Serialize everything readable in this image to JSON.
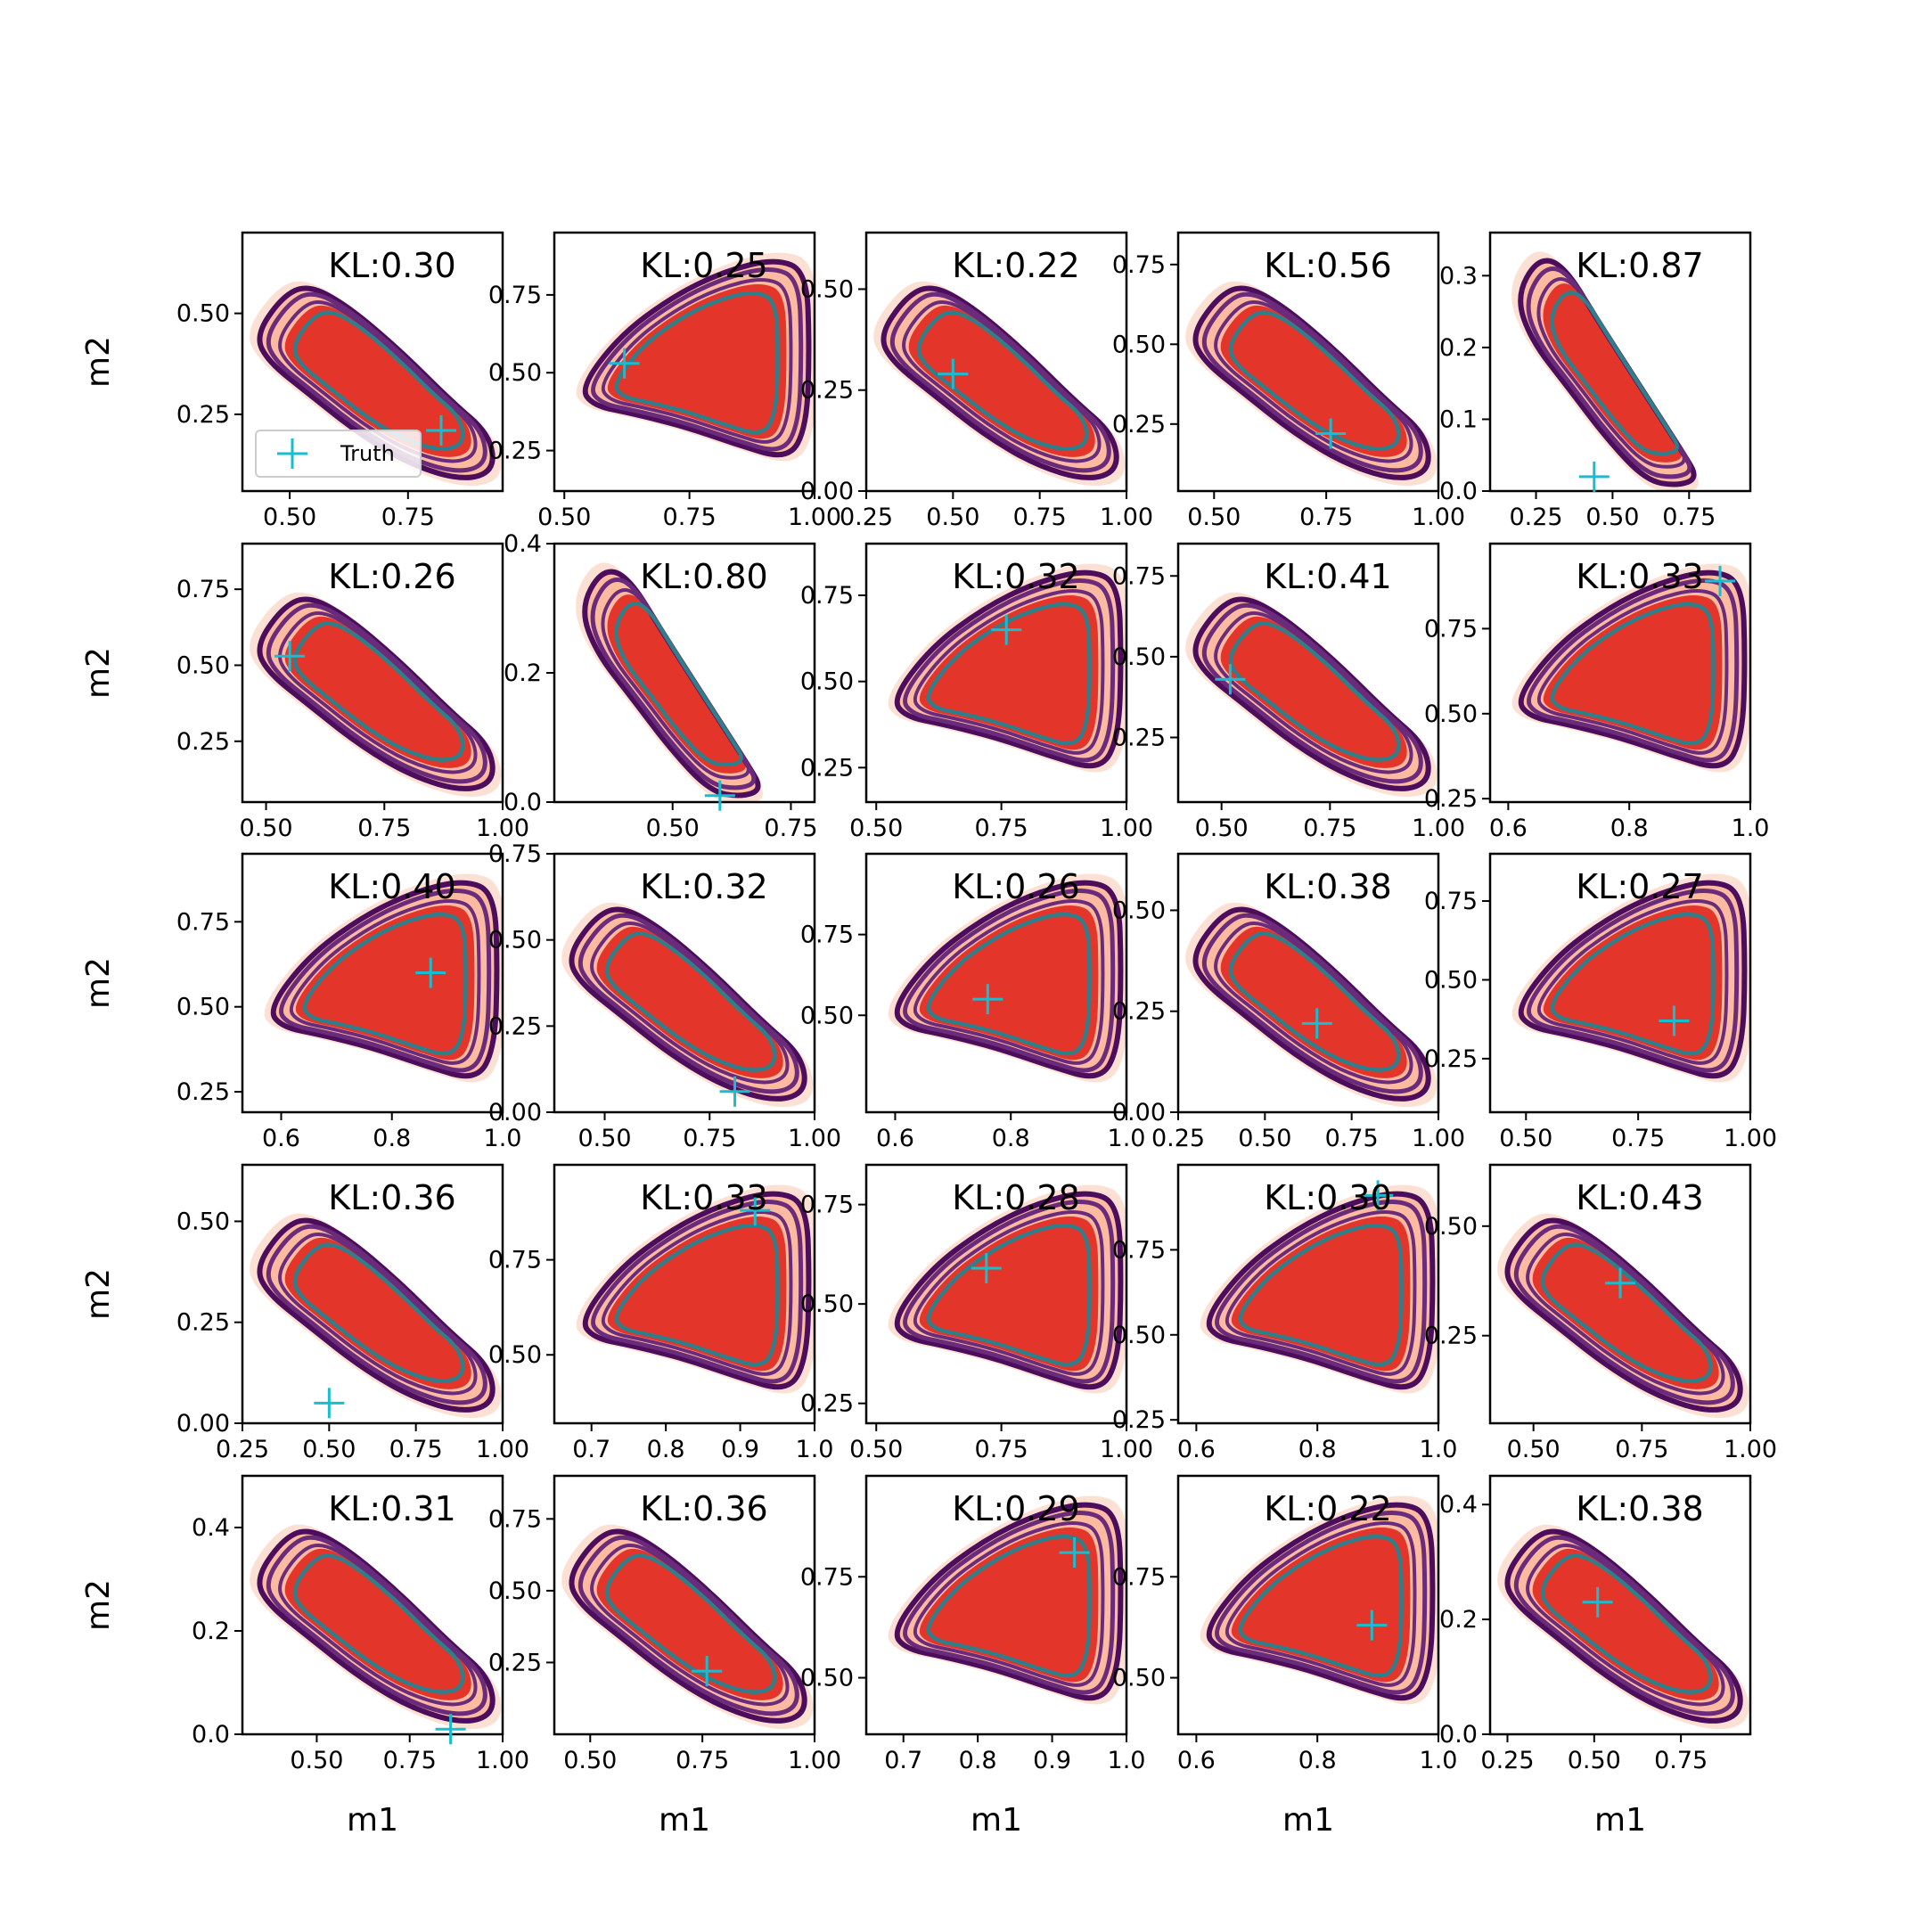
{
  "chart_data": {
    "type": "contour-grid",
    "rows": 5,
    "cols": 5,
    "xlabel": "m1",
    "ylabel": "m2",
    "legend": {
      "label": "Truth",
      "placement": "lower-left",
      "panel": 0
    },
    "colors": {
      "fill_outer": "#fde0d4",
      "fill_mid": "#fcbba1",
      "fill_inner": "#e4352b",
      "line_outer": "#4b0d5c",
      "line_mid": "#6a2c7a",
      "line_inner": "#2f7f8a",
      "truth": "#17becf"
    },
    "panels": [
      {
        "kl": "KL:0.30",
        "xlim": [
          0.4,
          0.95
        ],
        "ylim": [
          0.06,
          0.7
        ],
        "xticks": [
          "0.50",
          "0.75"
        ],
        "xtick_values": [
          0.5,
          0.75
        ],
        "yticks": [
          "0.25",
          "0.50"
        ],
        "ytick_values": [
          0.25,
          0.5
        ],
        "shape": "neg",
        "truth": [
          0.82,
          0.21
        ]
      },
      {
        "kl": "KL:0.25",
        "xlim": [
          0.48,
          1.0
        ],
        "ylim": [
          0.12,
          0.95
        ],
        "xticks": [
          "0.50",
          "0.75",
          "1.00"
        ],
        "xtick_values": [
          0.5,
          0.75,
          1.0
        ],
        "yticks": [
          "0.25",
          "0.50",
          "0.75"
        ],
        "ytick_values": [
          0.25,
          0.5,
          0.75
        ],
        "shape": "pos",
        "truth": [
          0.62,
          0.53
        ]
      },
      {
        "kl": "KL:0.22",
        "xlim": [
          0.25,
          1.0
        ],
        "ylim": [
          0.0,
          0.64
        ],
        "xticks": [
          "0.25",
          "0.50",
          "0.75",
          "1.00"
        ],
        "xtick_values": [
          0.25,
          0.5,
          0.75,
          1.0
        ],
        "yticks": [
          "0.00",
          "0.25",
          "0.50"
        ],
        "ytick_values": [
          0.0,
          0.25,
          0.5
        ],
        "shape": "neg",
        "truth": [
          0.5,
          0.29
        ]
      },
      {
        "kl": "KL:0.56",
        "xlim": [
          0.42,
          1.0
        ],
        "ylim": [
          0.04,
          0.85
        ],
        "xticks": [
          "0.50",
          "0.75",
          "1.00"
        ],
        "xtick_values": [
          0.5,
          0.75,
          1.0
        ],
        "yticks": [
          "0.25",
          "0.50",
          "0.75"
        ],
        "ytick_values": [
          0.25,
          0.5,
          0.75
        ],
        "shape": "neg",
        "truth": [
          0.76,
          0.22
        ]
      },
      {
        "kl": "KL:0.87",
        "xlim": [
          0.1,
          0.95
        ],
        "ylim": [
          0.0,
          0.36
        ],
        "xticks": [
          "0.25",
          "0.50",
          "0.75"
        ],
        "xtick_values": [
          0.25,
          0.5,
          0.75
        ],
        "yticks": [
          "0.0",
          "0.1",
          "0.2",
          "0.3"
        ],
        "ytick_values": [
          0.0,
          0.1,
          0.2,
          0.3
        ],
        "shape": "negthin",
        "truth": [
          0.44,
          0.02
        ]
      },
      {
        "kl": "KL:0.26",
        "xlim": [
          0.45,
          1.0
        ],
        "ylim": [
          0.05,
          0.9
        ],
        "xticks": [
          "0.50",
          "0.75",
          "1.00"
        ],
        "xtick_values": [
          0.5,
          0.75,
          1.0
        ],
        "yticks": [
          "0.25",
          "0.50",
          "0.75"
        ],
        "ytick_values": [
          0.25,
          0.5,
          0.75
        ],
        "shape": "neg",
        "truth": [
          0.55,
          0.53
        ]
      },
      {
        "kl": "KL:0.80",
        "xlim": [
          0.25,
          0.8
        ],
        "ylim": [
          0.0,
          0.4
        ],
        "xticks": [
          "0.50",
          "0.75"
        ],
        "xtick_values": [
          0.5,
          0.75
        ],
        "yticks": [
          "0.0",
          "0.2",
          "0.4"
        ],
        "ytick_values": [
          0.0,
          0.2,
          0.4
        ],
        "shape": "negthin",
        "truth": [
          0.6,
          0.01
        ]
      },
      {
        "kl": "KL:0.32",
        "xlim": [
          0.48,
          1.0
        ],
        "ylim": [
          0.15,
          0.9
        ],
        "xticks": [
          "0.50",
          "0.75",
          "1.00"
        ],
        "xtick_values": [
          0.5,
          0.75,
          1.0
        ],
        "yticks": [
          "0.25",
          "0.50",
          "0.75"
        ],
        "ytick_values": [
          0.25,
          0.5,
          0.75
        ],
        "shape": "pos",
        "truth": [
          0.76,
          0.65
        ]
      },
      {
        "kl": "KL:0.41",
        "xlim": [
          0.4,
          1.0
        ],
        "ylim": [
          0.05,
          0.85
        ],
        "xticks": [
          "0.50",
          "0.75",
          "1.00"
        ],
        "xtick_values": [
          0.5,
          0.75,
          1.0
        ],
        "yticks": [
          "0.25",
          "0.50",
          "0.75"
        ],
        "ytick_values": [
          0.25,
          0.5,
          0.75
        ],
        "shape": "neg",
        "truth": [
          0.52,
          0.43
        ]
      },
      {
        "kl": "KL:0.33",
        "xlim": [
          0.57,
          1.0
        ],
        "ylim": [
          0.24,
          1.0
        ],
        "xticks": [
          "0.6",
          "0.8",
          "1.0"
        ],
        "xtick_values": [
          0.6,
          0.8,
          1.0
        ],
        "yticks": [
          "0.25",
          "0.50",
          "0.75"
        ],
        "ytick_values": [
          0.25,
          0.5,
          0.75
        ],
        "shape": "pos",
        "truth": [
          0.95,
          0.89
        ]
      },
      {
        "kl": "KL:0.40",
        "xlim": [
          0.53,
          1.0
        ],
        "ylim": [
          0.19,
          0.95
        ],
        "xticks": [
          "0.6",
          "0.8",
          "1.0"
        ],
        "xtick_values": [
          0.6,
          0.8,
          1.0
        ],
        "yticks": [
          "0.25",
          "0.50",
          "0.75"
        ],
        "ytick_values": [
          0.25,
          0.5,
          0.75
        ],
        "shape": "pos",
        "truth": [
          0.87,
          0.6
        ]
      },
      {
        "kl": "KL:0.32",
        "xlim": [
          0.38,
          1.0
        ],
        "ylim": [
          0.0,
          0.75
        ],
        "xticks": [
          "0.50",
          "0.75",
          "1.00"
        ],
        "xtick_values": [
          0.5,
          0.75,
          1.0
        ],
        "yticks": [
          "0.00",
          "0.25",
          "0.50",
          "0.75"
        ],
        "ytick_values": [
          0.0,
          0.25,
          0.5,
          0.75
        ],
        "shape": "neg",
        "truth": [
          0.81,
          0.06
        ]
      },
      {
        "kl": "KL:0.26",
        "xlim": [
          0.55,
          1.0
        ],
        "ylim": [
          0.2,
          1.0
        ],
        "xticks": [
          "0.6",
          "0.8",
          "1.0"
        ],
        "xtick_values": [
          0.6,
          0.8,
          1.0
        ],
        "yticks": [
          "0.50",
          "0.75"
        ],
        "ytick_values": [
          0.5,
          0.75
        ],
        "shape": "pos",
        "truth": [
          0.76,
          0.55
        ]
      },
      {
        "kl": "KL:0.38",
        "xlim": [
          0.25,
          1.0
        ],
        "ylim": [
          0.0,
          0.64
        ],
        "xticks": [
          "0.25",
          "0.50",
          "0.75",
          "1.00"
        ],
        "xtick_values": [
          0.25,
          0.5,
          0.75,
          1.0
        ],
        "yticks": [
          "0.00",
          "0.25",
          "0.50"
        ],
        "ytick_values": [
          0.0,
          0.25,
          0.5
        ],
        "shape": "neg",
        "truth": [
          0.65,
          0.22
        ]
      },
      {
        "kl": "KL:0.27",
        "xlim": [
          0.42,
          1.0
        ],
        "ylim": [
          0.08,
          0.9
        ],
        "xticks": [
          "0.50",
          "0.75",
          "1.00"
        ],
        "xtick_values": [
          0.5,
          0.75,
          1.0
        ],
        "yticks": [
          "0.25",
          "0.50",
          "0.75"
        ],
        "ytick_values": [
          0.25,
          0.5,
          0.75
        ],
        "shape": "pos",
        "truth": [
          0.83,
          0.37
        ]
      },
      {
        "kl": "KL:0.36",
        "xlim": [
          0.25,
          1.0
        ],
        "ylim": [
          0.0,
          0.64
        ],
        "xticks": [
          "0.25",
          "0.50",
          "0.75",
          "1.00"
        ],
        "xtick_values": [
          0.25,
          0.5,
          0.75,
          1.0
        ],
        "yticks": [
          "0.00",
          "0.25",
          "0.50"
        ],
        "ytick_values": [
          0.0,
          0.25,
          0.5
        ],
        "shape": "neg",
        "truth": [
          0.5,
          0.05
        ]
      },
      {
        "kl": "KL:0.33",
        "xlim": [
          0.65,
          1.0
        ],
        "ylim": [
          0.32,
          1.0
        ],
        "xticks": [
          "0.7",
          "0.8",
          "0.9",
          "1.0"
        ],
        "xtick_values": [
          0.7,
          0.8,
          0.9,
          1.0
        ],
        "yticks": [
          "0.50",
          "0.75"
        ],
        "ytick_values": [
          0.5,
          0.75
        ],
        "shape": "pos",
        "truth": [
          0.92,
          0.88
        ]
      },
      {
        "kl": "KL:0.28",
        "xlim": [
          0.48,
          1.0
        ],
        "ylim": [
          0.2,
          0.85
        ],
        "xticks": [
          "0.50",
          "0.75",
          "1.00"
        ],
        "xtick_values": [
          0.5,
          0.75,
          1.0
        ],
        "yticks": [
          "0.25",
          "0.50",
          "0.75"
        ],
        "ytick_values": [
          0.25,
          0.5,
          0.75
        ],
        "shape": "pos",
        "truth": [
          0.72,
          0.59
        ]
      },
      {
        "kl": "KL:0.30",
        "xlim": [
          0.57,
          1.0
        ],
        "ylim": [
          0.24,
          1.0
        ],
        "xticks": [
          "0.6",
          "0.8",
          "1.0"
        ],
        "xtick_values": [
          0.6,
          0.8,
          1.0
        ],
        "yticks": [
          "0.25",
          "0.50",
          "0.75"
        ],
        "ytick_values": [
          0.25,
          0.5,
          0.75
        ],
        "shape": "pos",
        "truth": [
          0.9,
          0.91
        ]
      },
      {
        "kl": "KL:0.43",
        "xlim": [
          0.4,
          1.0
        ],
        "ylim": [
          0.05,
          0.64
        ],
        "xticks": [
          "0.50",
          "0.75",
          "1.00"
        ],
        "xtick_values": [
          0.5,
          0.75,
          1.0
        ],
        "yticks": [
          "0.25",
          "0.50"
        ],
        "ytick_values": [
          0.25,
          0.5
        ],
        "shape": "neg",
        "truth": [
          0.7,
          0.37
        ]
      },
      {
        "kl": "KL:0.31",
        "xlim": [
          0.3,
          1.0
        ],
        "ylim": [
          0.0,
          0.5
        ],
        "xticks": [
          "0.50",
          "0.75",
          "1.00"
        ],
        "xtick_values": [
          0.5,
          0.75,
          1.0
        ],
        "yticks": [
          "0.0",
          "0.2",
          "0.4"
        ],
        "ytick_values": [
          0.0,
          0.2,
          0.4
        ],
        "shape": "neg",
        "truth": [
          0.86,
          0.01
        ]
      },
      {
        "kl": "KL:0.36",
        "xlim": [
          0.42,
          1.0
        ],
        "ylim": [
          0.0,
          0.9
        ],
        "xticks": [
          "0.50",
          "0.75",
          "1.00"
        ],
        "xtick_values": [
          0.5,
          0.75,
          1.0
        ],
        "yticks": [
          "0.25",
          "0.50",
          "0.75"
        ],
        "ytick_values": [
          0.25,
          0.5,
          0.75
        ],
        "shape": "neg",
        "truth": [
          0.76,
          0.22
        ]
      },
      {
        "kl": "KL:0.29",
        "xlim": [
          0.65,
          1.0
        ],
        "ylim": [
          0.36,
          1.0
        ],
        "xticks": [
          "0.7",
          "0.8",
          "0.9",
          "1.0"
        ],
        "xtick_values": [
          0.7,
          0.8,
          0.9,
          1.0
        ],
        "yticks": [
          "0.50",
          "0.75"
        ],
        "ytick_values": [
          0.5,
          0.75
        ],
        "shape": "pos",
        "truth": [
          0.93,
          0.81
        ]
      },
      {
        "kl": "KL:0.22",
        "xlim": [
          0.57,
          1.0
        ],
        "ylim": [
          0.36,
          1.0
        ],
        "xticks": [
          "0.6",
          "0.8",
          "1.0"
        ],
        "xtick_values": [
          0.6,
          0.8,
          1.0
        ],
        "yticks": [
          "0.50",
          "0.75"
        ],
        "ytick_values": [
          0.5,
          0.75
        ],
        "shape": "pos",
        "truth": [
          0.89,
          0.63
        ]
      },
      {
        "kl": "KL:0.38",
        "xlim": [
          0.2,
          0.95
        ],
        "ylim": [
          0.0,
          0.45
        ],
        "xticks": [
          "0.25",
          "0.50",
          "0.75"
        ],
        "xtick_values": [
          0.25,
          0.5,
          0.75
        ],
        "yticks": [
          "0.0",
          "0.2",
          "0.4"
        ],
        "ytick_values": [
          0.0,
          0.2,
          0.4
        ],
        "shape": "neg",
        "truth": [
          0.51,
          0.23
        ]
      }
    ]
  }
}
